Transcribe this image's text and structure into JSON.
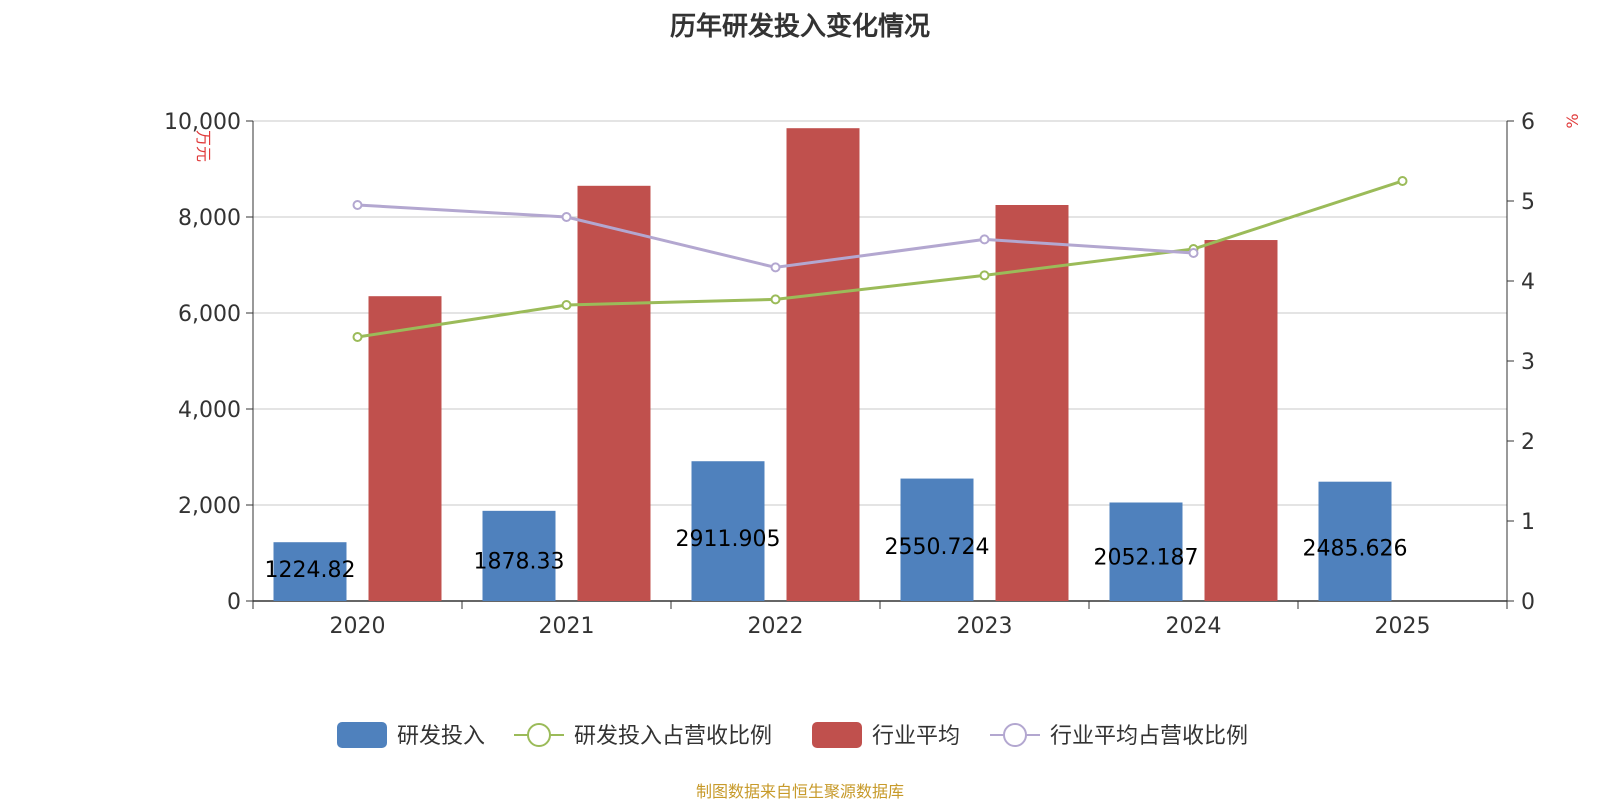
{
  "chart_data": {
    "type": "bar",
    "title": "历年研发投入变化情况",
    "categories": [
      "2020",
      "2021",
      "2022",
      "2023",
      "2024",
      "2025"
    ],
    "y_left": {
      "unit": "万元",
      "ticks": [
        "0",
        "2,000",
        "4,000",
        "6,000",
        "8,000",
        "10,000"
      ],
      "range": [
        0,
        10000
      ]
    },
    "y_right": {
      "unit": "%",
      "ticks": [
        "0",
        "1",
        "2",
        "3",
        "4",
        "5",
        "6"
      ],
      "range": [
        0,
        6
      ]
    },
    "series": [
      {
        "name": "研发投入",
        "type": "bar",
        "axis": "left",
        "color": "#4f81bd",
        "values": [
          1224.82,
          1878.33,
          2911.905,
          2550.724,
          2052.187,
          2485.626
        ],
        "labels": [
          "1224.82",
          "1878.33",
          "2911.905",
          "2550.724",
          "2052.187",
          "2485.626"
        ]
      },
      {
        "name": "研发投入占营收比例",
        "type": "line",
        "axis": "right",
        "color": "#9bbb59",
        "values": [
          3.3,
          3.7,
          3.77,
          4.07,
          4.4,
          5.25
        ]
      },
      {
        "name": "行业平均",
        "type": "bar",
        "axis": "left",
        "color": "#c0504d",
        "values": [
          6350,
          8650,
          9850,
          8250,
          7520,
          null
        ]
      },
      {
        "name": "行业平均占营收比例",
        "type": "line",
        "axis": "right",
        "color": "#b3a7d0",
        "values": [
          4.95,
          4.8,
          4.17,
          4.52,
          4.35,
          null
        ]
      }
    ],
    "grid": true,
    "legend": "bottom"
  },
  "footer": "制图数据来自恒生聚源数据库"
}
